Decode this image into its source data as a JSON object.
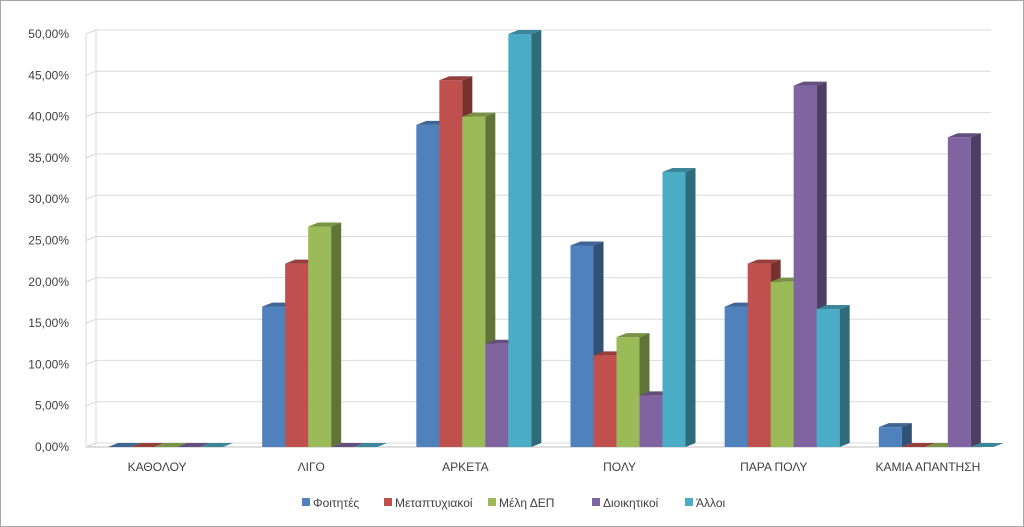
{
  "chart_data": {
    "type": "bar",
    "categories": [
      "ΚΑΘΟΛΟΥ",
      "ΛΙΓΟ",
      "ΑΡΚΕΤΑ",
      "ΠΟΛΥ",
      "ΠΑΡΑ ΠΟΛΥ",
      "ΚΑΜΙΑ ΑΠΑΝΤΗΣΗ"
    ],
    "series": [
      {
        "name": "Φοιτητές",
        "color": "#4F81BD",
        "values": [
          0,
          17.0,
          39.0,
          24.4,
          17.0,
          2.4
        ]
      },
      {
        "name": "Μεταπτυχιακοί",
        "color": "#C0504D",
        "values": [
          0,
          22.2,
          44.4,
          11.1,
          22.2,
          0
        ]
      },
      {
        "name": "Μέλη ΔΕΠ",
        "color": "#9BBB59",
        "values": [
          0,
          26.7,
          40.0,
          13.3,
          20.0,
          0
        ]
      },
      {
        "name": "Διοικητικοί",
        "color": "#8064A2",
        "values": [
          0,
          0,
          12.5,
          6.25,
          43.75,
          37.5
        ]
      },
      {
        "name": "Άλλοι",
        "color": "#4BACC6",
        "values": [
          0,
          0,
          50.0,
          33.3,
          16.7,
          0
        ]
      }
    ],
    "yticks": [
      "0,00%",
      "5,00%",
      "10,00%",
      "15,00%",
      "20,00%",
      "25,00%",
      "30,00%",
      "35,00%",
      "40,00%",
      "45,00%",
      "50,00%"
    ],
    "ylim": [
      0,
      50
    ],
    "grid": true,
    "legend_position": "bottom",
    "style": "3d-clustered-column"
  }
}
